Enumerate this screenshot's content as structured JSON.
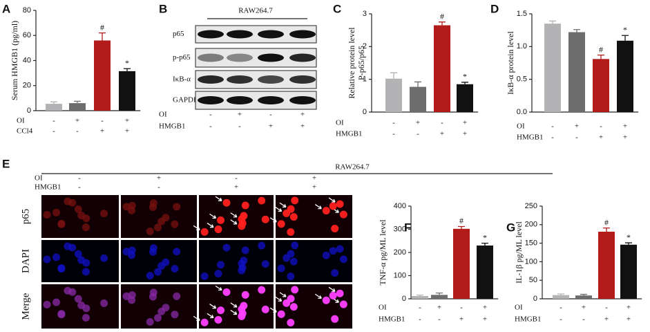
{
  "chart_data": [
    {
      "type": "bar",
      "panel": "A",
      "ylabel": [
        "Serum HMGB1 (pg/ml)"
      ],
      "ylim": [
        0,
        80
      ],
      "yticks": [
        0,
        20,
        40,
        60,
        80
      ],
      "values": [
        5.5,
        6,
        56,
        31.5
      ],
      "errors": [
        1.5,
        1.5,
        6,
        2
      ],
      "annotations": [
        null,
        null,
        "#",
        "*"
      ],
      "colors": [
        "#b3b3b5",
        "#6d6d6d",
        "#b31b1b",
        "#111111"
      ],
      "conditions": [
        {
          "name": "OI",
          "signs": [
            "-",
            "+",
            "-",
            "+"
          ]
        },
        {
          "name": "CCl4",
          "signs": [
            "-",
            "-",
            "+",
            "+"
          ]
        }
      ]
    },
    {
      "type": "bar",
      "panel": "C",
      "ylabel": [
        "Relative protein level",
        "P-p65/p65"
      ],
      "ylim": [
        0,
        3
      ],
      "yticks": [
        0,
        1,
        2,
        3
      ],
      "values": [
        1.02,
        0.77,
        2.65,
        0.85
      ],
      "errors": [
        0.18,
        0.15,
        0.1,
        0.06
      ],
      "annotations": [
        null,
        null,
        "#",
        "*"
      ],
      "colors": [
        "#b3b3b5",
        "#6d6d6d",
        "#b31b1b",
        "#111111"
      ],
      "conditions": [
        {
          "name": "OI",
          "signs": [
            "-",
            "+",
            "-",
            "+"
          ]
        },
        {
          "name": "HMGB1",
          "signs": [
            "-",
            "-",
            "+",
            "+"
          ]
        }
      ]
    },
    {
      "type": "bar",
      "panel": "D",
      "ylabel": [
        "IκB-α protein level"
      ],
      "ylim": [
        0,
        1.5
      ],
      "yticks": [
        {
          "value": 0,
          "label": "0.0"
        },
        0.5,
        {
          "value": 1,
          "label": "1.0"
        },
        1.5
      ],
      "values": [
        1.35,
        1.22,
        0.81,
        1.09
      ],
      "errors": [
        0.04,
        0.04,
        0.06,
        0.08
      ],
      "annotations": [
        null,
        null,
        "#",
        "*"
      ],
      "colors": [
        "#b3b3b5",
        "#6d6d6d",
        "#b31b1b",
        "#111111"
      ],
      "conditions": [
        {
          "name": "OI",
          "signs": [
            "-",
            "+",
            "-",
            "+"
          ]
        },
        {
          "name": "HMGB1",
          "signs": [
            "-",
            "-",
            "+",
            "+"
          ]
        }
      ]
    },
    {
      "type": "bar",
      "panel": "F",
      "ylabel": [
        "TNF-α pg/ML level"
      ],
      "ylim": [
        0,
        400
      ],
      "yticks": [
        0,
        100,
        200,
        300,
        400
      ],
      "values": [
        12,
        17,
        302,
        230
      ],
      "errors": [
        4,
        8,
        10,
        10
      ],
      "annotations": [
        null,
        null,
        "#",
        "*"
      ],
      "colors": [
        "#b3b3b5",
        "#6d6d6d",
        "#b31b1b",
        "#111111"
      ],
      "conditions": [
        {
          "name": "OI",
          "signs": [
            "-",
            "+",
            "-",
            "+"
          ]
        },
        {
          "name": "HMGB1",
          "signs": [
            "-",
            "-",
            "+",
            "+"
          ]
        }
      ]
    },
    {
      "type": "bar",
      "panel": "G",
      "ylabel": [
        "IL-1β pg/ML level"
      ],
      "ylim": [
        0,
        250
      ],
      "yticks": [
        0,
        50,
        100,
        150,
        200,
        250
      ],
      "values": [
        10,
        9,
        181,
        146
      ],
      "errors": [
        3,
        3,
        10,
        5
      ],
      "annotations": [
        null,
        null,
        "#",
        "*"
      ],
      "colors": [
        "#b3b3b5",
        "#6d6d6d",
        "#b31b1b",
        "#111111"
      ],
      "conditions": [
        {
          "name": "OI",
          "signs": [
            "-",
            "+",
            "-",
            "+"
          ]
        },
        {
          "name": "HMGB1",
          "signs": [
            "-",
            "-",
            "+",
            "+"
          ]
        }
      ]
    }
  ],
  "blot": {
    "panel": "B",
    "title": "RAW264.7",
    "rows": [
      "p65",
      "p-p65",
      "IκB-α",
      "GAPDH"
    ],
    "conditions": [
      {
        "name": "OI",
        "signs": [
          "-",
          "+",
          "-",
          "+"
        ]
      },
      {
        "name": "HMGB1",
        "signs": [
          "-",
          "-",
          "+",
          "+"
        ]
      }
    ]
  },
  "micrographs": {
    "panel": "E",
    "title": "RAW264.7",
    "rows": [
      "p65",
      "DAPI",
      "Merge"
    ],
    "conditions": [
      {
        "name": "OI",
        "signs": [
          "-",
          "+",
          "-",
          "+"
        ]
      },
      {
        "name": "HMGB1",
        "signs": [
          "-",
          "-",
          "+",
          "+"
        ]
      }
    ]
  }
}
